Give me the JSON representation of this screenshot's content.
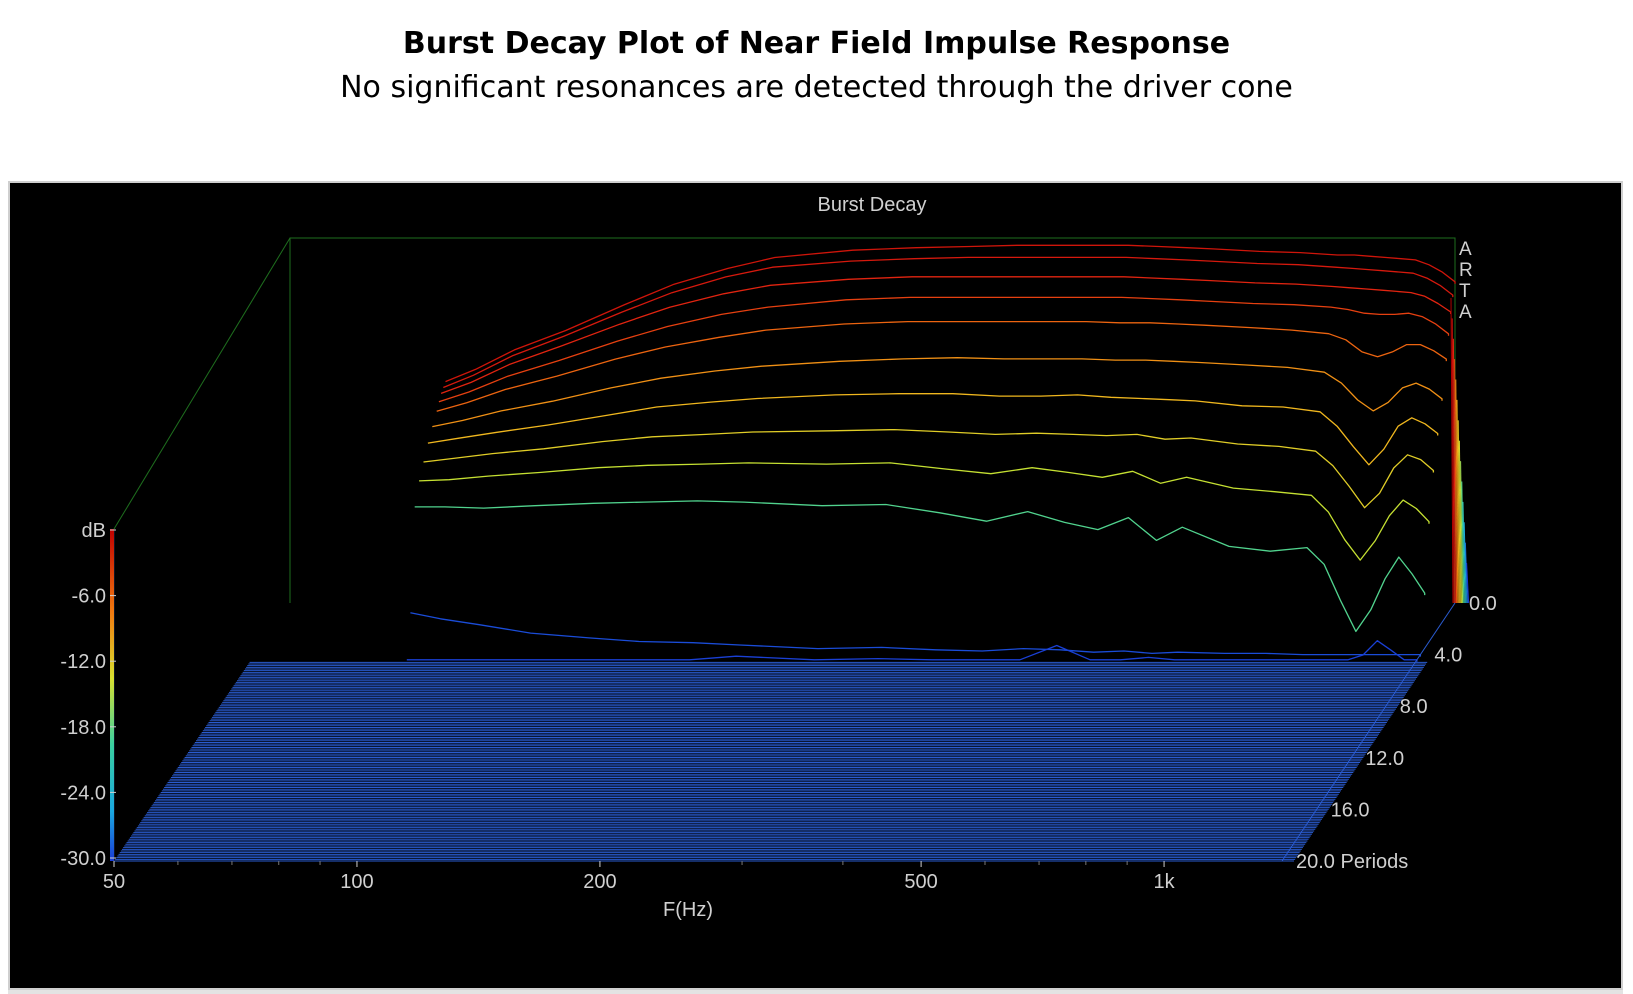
{
  "heading": {
    "title": "Burst Decay Plot of Near Field Impulse Response",
    "subtitle": "No significant resonances are detected through the driver cone"
  },
  "colors": {
    "background": "#000000",
    "box_lines": "#1e6e1e",
    "floor_lines": "#2a5bd0",
    "axis_text": "#d0d0d0",
    "colormap": [
      "#1a3cd6",
      "#1aa8e0",
      "#3ad0a0",
      "#c8e030",
      "#f0c020",
      "#f07a10",
      "#e02010",
      "#b00000"
    ]
  },
  "chart_data": {
    "type": "waterfall",
    "title": "Burst Decay",
    "watermark": "ARTA",
    "xlabel": "F(Hz)",
    "zlabel": "Periods",
    "ylabel": "dB",
    "xscale": "log",
    "xlim": [
      50,
      1400
    ],
    "ylim": [
      -30,
      0
    ],
    "zlim": [
      0,
      20
    ],
    "x_ticks": [
      {
        "value": 50,
        "label": "50"
      },
      {
        "value": 100,
        "label": "100"
      },
      {
        "value": 200,
        "label": "200"
      },
      {
        "value": 500,
        "label": "500"
      },
      {
        "value": 1000,
        "label": "1k"
      }
    ],
    "y_ticks": [
      "dB",
      "-6.0",
      "-12.0",
      "-18.0",
      "-24.0",
      "-30.0"
    ],
    "z_ticks": [
      {
        "value": 0,
        "label": "0.0"
      },
      {
        "value": 4,
        "label": "4.0"
      },
      {
        "value": 8,
        "label": "8.0"
      },
      {
        "value": 12,
        "label": "12.0"
      },
      {
        "value": 16,
        "label": "16.0"
      },
      {
        "value": 20,
        "label": "20.0 Periods"
      }
    ],
    "freqs": [
      78,
      85,
      95,
      110,
      130,
      150,
      175,
      200,
      250,
      300,
      350,
      400,
      450,
      500,
      550,
      600,
      650,
      700,
      800,
      900,
      1000,
      1050,
      1100,
      1150,
      1200,
      1250,
      1300,
      1350,
      1400
    ],
    "slices": [
      {
        "period": 0.0,
        "db": [
          -11.8,
          -10.8,
          -9.2,
          -7.6,
          -5.5,
          -3.8,
          -2.5,
          -1.6,
          -1.0,
          -0.8,
          -0.7,
          -0.6,
          -0.6,
          -0.6,
          -0.6,
          -0.7,
          -0.8,
          -0.9,
          -1.1,
          -1.2,
          -1.4,
          -1.4,
          -1.5,
          -1.6,
          -1.7,
          -1.8,
          -2.2,
          -2.8,
          -3.6
        ]
      },
      {
        "period": 0.25,
        "db": [
          -12.0,
          -11.0,
          -9.4,
          -7.8,
          -5.8,
          -4.2,
          -2.9,
          -2.1,
          -1.6,
          -1.4,
          -1.3,
          -1.3,
          -1.3,
          -1.3,
          -1.3,
          -1.4,
          -1.5,
          -1.6,
          -1.8,
          -1.9,
          -2.1,
          -2.2,
          -2.3,
          -2.4,
          -2.5,
          -2.6,
          -3.0,
          -3.6,
          -4.4
        ]
      },
      {
        "period": 0.5,
        "db": [
          -12.2,
          -11.3,
          -9.8,
          -8.3,
          -6.5,
          -5.1,
          -4.0,
          -3.3,
          -2.8,
          -2.6,
          -2.6,
          -2.6,
          -2.6,
          -2.6,
          -2.6,
          -2.7,
          -2.8,
          -2.9,
          -3.1,
          -3.2,
          -3.4,
          -3.5,
          -3.6,
          -3.7,
          -3.8,
          -3.9,
          -4.2,
          -4.8,
          -5.5
        ]
      },
      {
        "period": 0.75,
        "db": [
          -12.6,
          -11.8,
          -10.5,
          -9.2,
          -7.6,
          -6.4,
          -5.4,
          -4.8,
          -4.2,
          -4.0,
          -4.0,
          -4.0,
          -4.0,
          -4.0,
          -4.0,
          -4.1,
          -4.2,
          -4.3,
          -4.5,
          -4.6,
          -4.8,
          -5.0,
          -5.3,
          -5.4,
          -5.4,
          -5.3,
          -5.6,
          -6.2,
          -7.0
        ]
      },
      {
        "period": 1.0,
        "db": [
          -13.1,
          -12.4,
          -11.3,
          -10.2,
          -8.8,
          -7.8,
          -7.0,
          -6.4,
          -5.9,
          -5.7,
          -5.7,
          -5.7,
          -5.7,
          -5.7,
          -5.8,
          -5.8,
          -5.9,
          -6.0,
          -6.2,
          -6.4,
          -6.7,
          -7.2,
          -8.2,
          -8.6,
          -8.2,
          -7.6,
          -7.6,
          -8.1,
          -8.8
        ]
      },
      {
        "period": 1.5,
        "db": [
          -13.8,
          -13.3,
          -12.5,
          -11.7,
          -10.6,
          -9.8,
          -9.2,
          -8.8,
          -8.4,
          -8.2,
          -8.1,
          -8.2,
          -8.2,
          -8.2,
          -8.3,
          -8.3,
          -8.4,
          -8.5,
          -8.7,
          -8.9,
          -9.3,
          -10.2,
          -11.6,
          -12.5,
          -11.8,
          -10.6,
          -10.2,
          -10.7,
          -11.5
        ]
      },
      {
        "period": 2.0,
        "db": [
          -14.6,
          -14.2,
          -13.7,
          -13.1,
          -12.3,
          -11.6,
          -11.2,
          -10.9,
          -10.6,
          -10.5,
          -10.5,
          -10.7,
          -10.7,
          -10.6,
          -10.8,
          -10.9,
          -11.0,
          -11.1,
          -11.5,
          -11.6,
          -12.0,
          -13.2,
          -14.9,
          -16.4,
          -15.1,
          -13.2,
          -12.5,
          -13.0,
          -13.8
        ]
      },
      {
        "period": 2.5,
        "db": [
          -15.6,
          -15.3,
          -14.9,
          -14.5,
          -13.9,
          -13.5,
          -13.3,
          -13.1,
          -13.0,
          -12.9,
          -13.1,
          -13.3,
          -13.2,
          -13.3,
          -13.4,
          -13.3,
          -13.7,
          -13.6,
          -14.1,
          -14.3,
          -14.7,
          -15.9,
          -17.6,
          -19.4,
          -18.2,
          -16.1,
          -15.0,
          -15.4,
          -16.3
        ]
      },
      {
        "period": 3.0,
        "db": [
          -16.6,
          -16.5,
          -16.2,
          -15.9,
          -15.5,
          -15.3,
          -15.2,
          -15.1,
          -15.2,
          -15.1,
          -15.6,
          -16.0,
          -15.5,
          -15.9,
          -16.3,
          -15.8,
          -16.8,
          -16.3,
          -17.2,
          -17.5,
          -17.8,
          -19.2,
          -21.5,
          -23.2,
          -21.6,
          -19.5,
          -18.2,
          -18.9,
          -20.0
        ]
      },
      {
        "period": 3.5,
        "db": [
          -18.2,
          -18.2,
          -18.3,
          -18.1,
          -17.9,
          -17.8,
          -17.7,
          -17.8,
          -18.1,
          -18.0,
          -18.7,
          -19.4,
          -18.6,
          -19.5,
          -20.1,
          -19.1,
          -21.0,
          -19.9,
          -21.5,
          -21.9,
          -21.6,
          -23.0,
          -26.0,
          -28.6,
          -26.8,
          -24.2,
          -22.4,
          -23.8,
          -25.4
        ]
      },
      {
        "period": 4.0,
        "db": [
          -26.5,
          -27.0,
          -27.5,
          -28.2,
          -28.6,
          -28.9,
          -29.0,
          -29.2,
          -29.5,
          -29.4,
          -29.6,
          -29.7,
          -29.5,
          -29.6,
          -29.8,
          -29.7,
          -29.9,
          -29.8,
          -29.9,
          -29.9,
          -30.0,
          -30.0,
          -30.0,
          -30.0,
          -30.0,
          -30.0,
          -30.0,
          -30.0,
          -30.0
        ]
      },
      {
        "period": 4.4,
        "db": [
          -30.0,
          -30.0,
          -30.0,
          -30.0,
          -30.0,
          -30.0,
          -30.0,
          -29.7,
          -30.0,
          -29.9,
          -30.0,
          -30.0,
          -30.0,
          -28.8,
          -30.0,
          -30.0,
          -29.8,
          -30.0,
          -30.0,
          -30.0,
          -30.0,
          -30.0,
          -30.0,
          -30.0,
          -29.6,
          -28.4,
          -29.2,
          -30.0,
          -30.0
        ]
      }
    ]
  }
}
